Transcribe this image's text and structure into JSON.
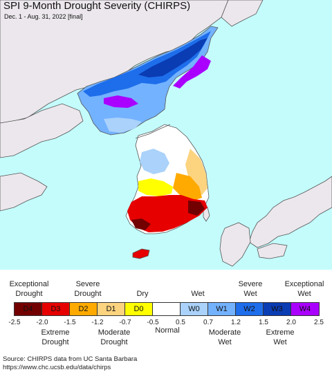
{
  "title": "SPI 9-Month Drought Severity (CHIRPS)",
  "subtitle": "Dec. 1 - Aug. 31, 2022 [final]",
  "legend": {
    "top_labels": [
      {
        "line1": "Exceptional",
        "line2": "Drought"
      },
      {
        "line1": "Severe",
        "line2": "Drought"
      },
      {
        "line1": "Dry",
        "line2": ""
      },
      {
        "line1": "Wet",
        "line2": ""
      },
      {
        "line1": "Severe",
        "line2": "Wet"
      },
      {
        "line1": "Exceptional",
        "line2": "Wet"
      }
    ],
    "categories": [
      {
        "code": "D4",
        "color": "#730000"
      },
      {
        "code": "D3",
        "color": "#e60000"
      },
      {
        "code": "D2",
        "color": "#ffaa00"
      },
      {
        "code": "D1",
        "color": "#fcd37f"
      },
      {
        "code": "D0",
        "color": "#ffff00"
      },
      {
        "code": "",
        "color": "#ffffff"
      },
      {
        "code": "W0",
        "color": "#aad2fa"
      },
      {
        "code": "W1",
        "color": "#73b2ff"
      },
      {
        "code": "W2",
        "color": "#1e6eeb"
      },
      {
        "code": "W3",
        "color": "#0a3cb4"
      },
      {
        "code": "W4",
        "color": "#aa00ff"
      }
    ],
    "ticks": [
      "-2.5",
      "-2.0",
      "-1.5",
      "-1.2",
      "-0.7",
      "-0.5",
      "0.5",
      "0.7",
      "1.2",
      "1.5",
      "2.0",
      "2.5"
    ],
    "bottom_labels": [
      {
        "line1": "Extreme",
        "line2": "Drought"
      },
      {
        "line1": "Moderate",
        "line2": "Drought"
      },
      {
        "line1": "Normal",
        "line2": ""
      },
      {
        "line1": "Moderate",
        "line2": "Wet"
      },
      {
        "line1": "Extreme",
        "line2": "Wet"
      }
    ]
  },
  "source": {
    "line1": "Source: CHIRPS data from UC Santa Barbara",
    "line2": "https://www.chc.ucsb.edu/data/chirps"
  },
  "colors": {
    "sea": "#c4fcfc",
    "land_other": "#ebe7ec",
    "border": "#555555"
  }
}
